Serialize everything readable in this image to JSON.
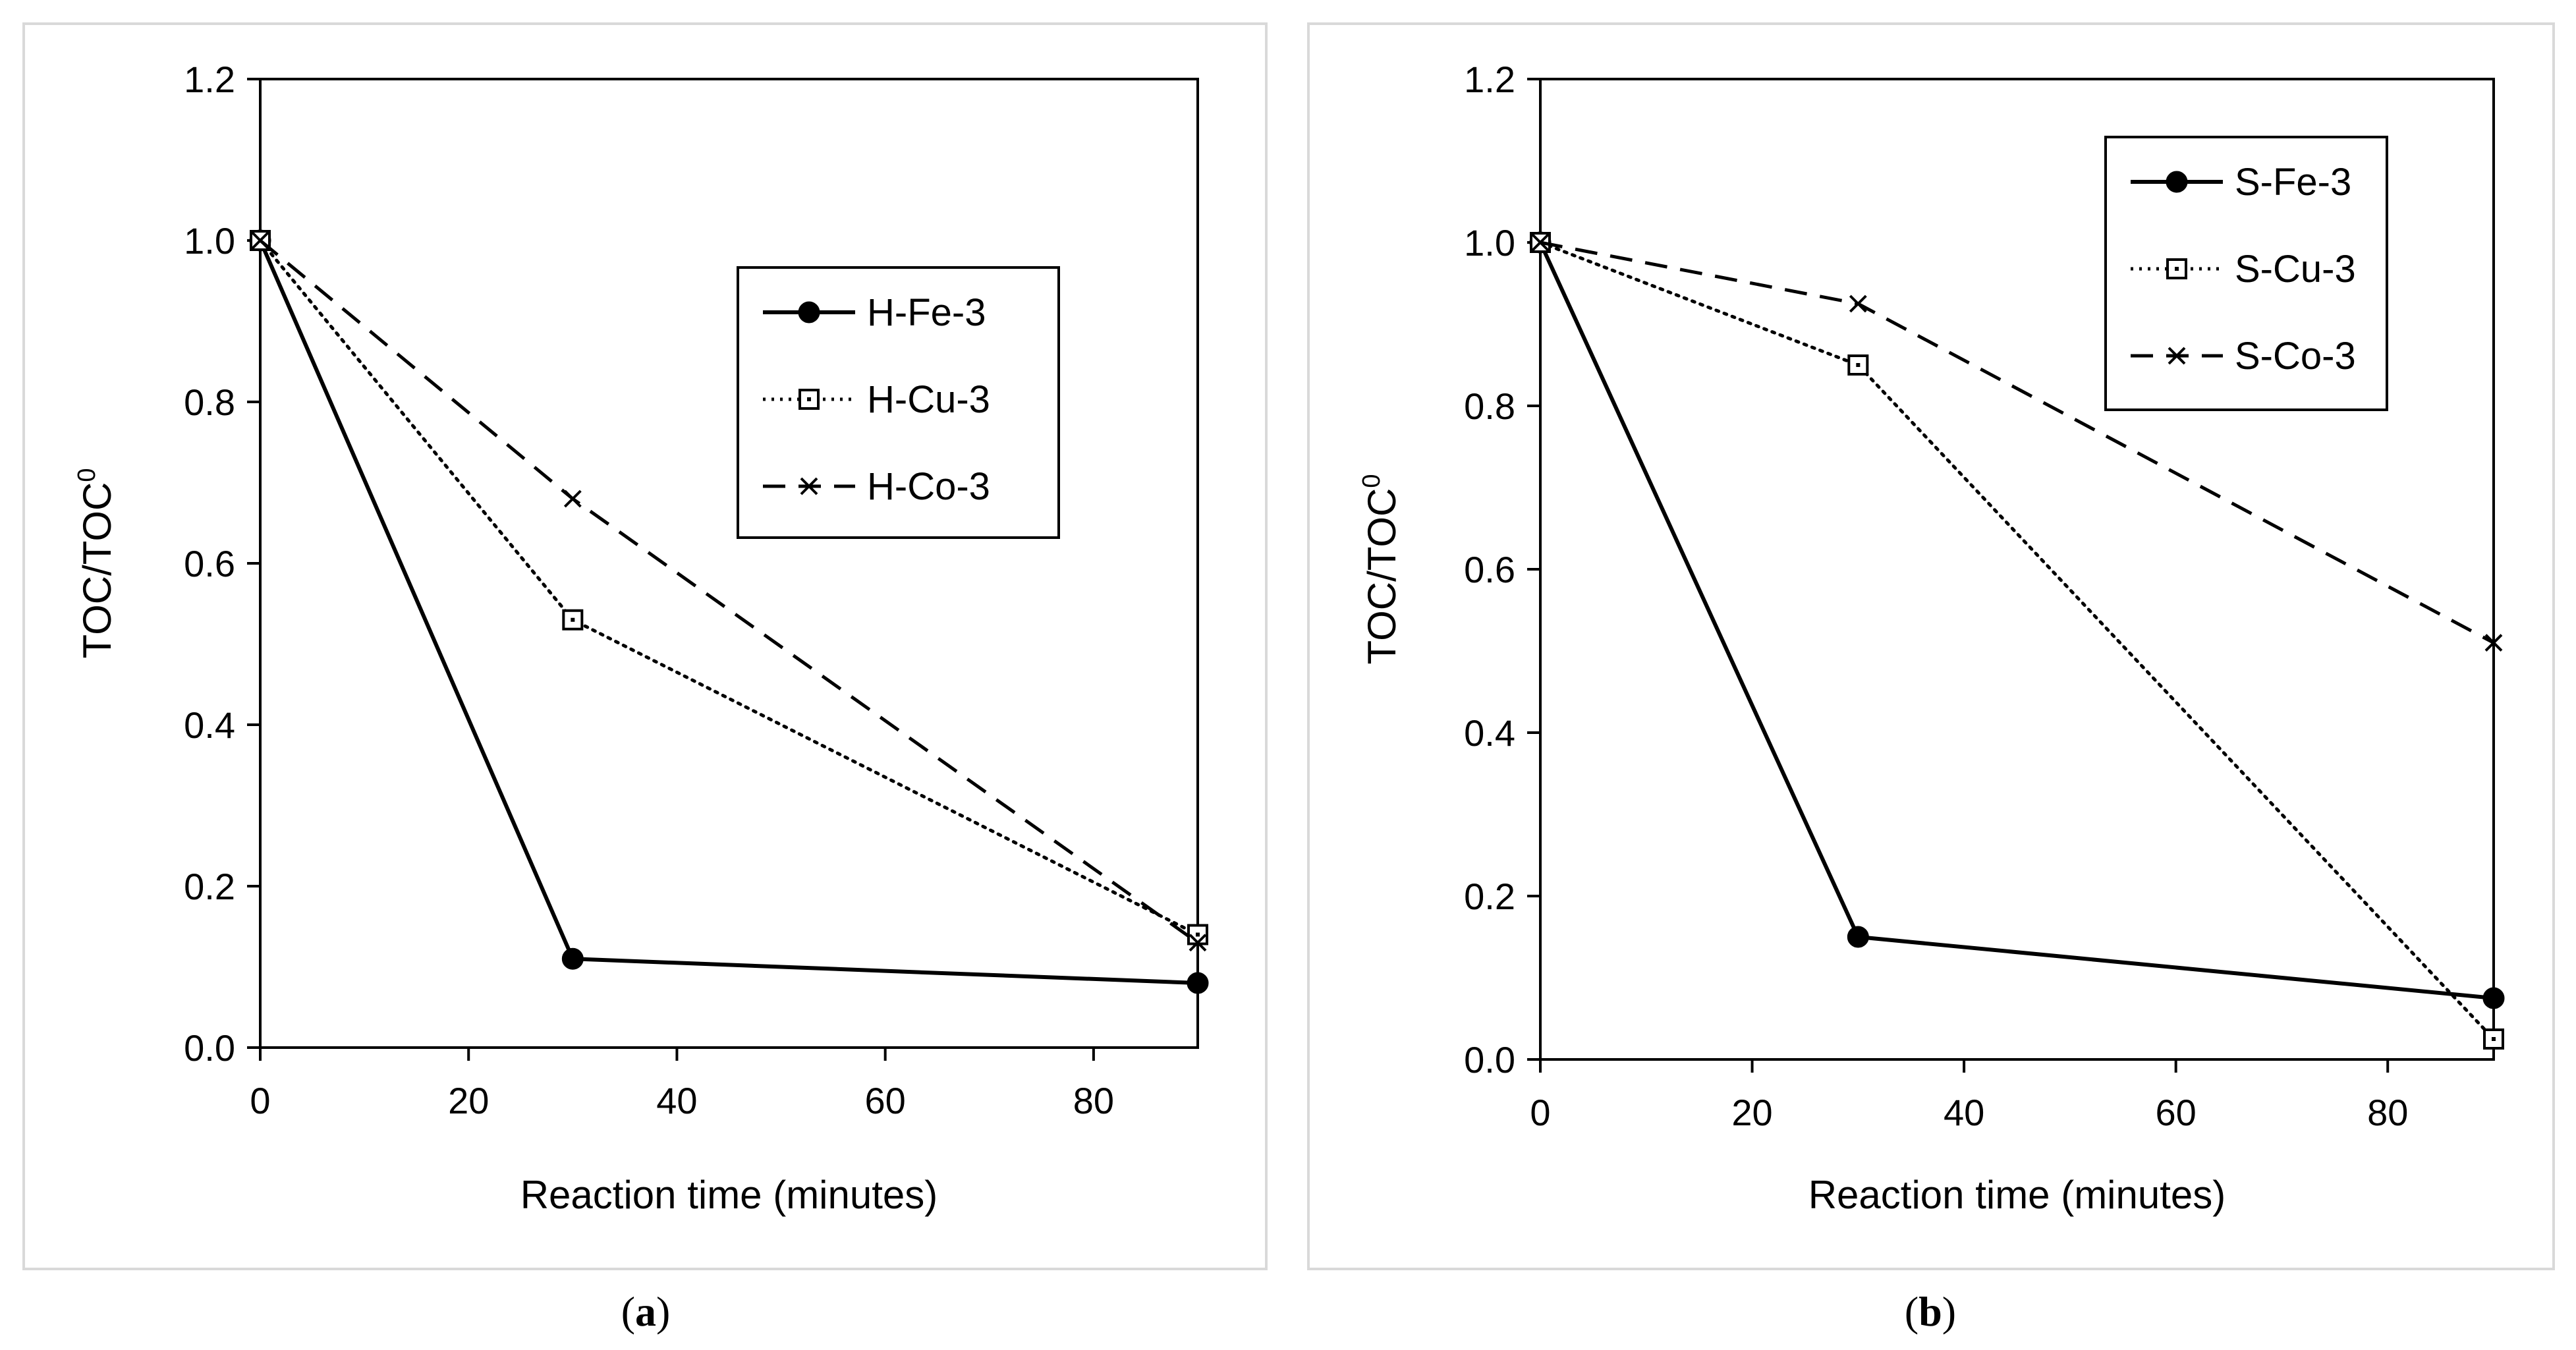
{
  "chart_data": [
    {
      "type": "line",
      "id": "a",
      "caption": {
        "open": "(",
        "letter": "a",
        "close": ")"
      },
      "title": "",
      "xlabel": "Reaction time (minutes)",
      "ylabel": {
        "base": "TOC/TOC",
        "sup": "0"
      },
      "xlim": [
        0,
        90
      ],
      "ylim": [
        0,
        1.2
      ],
      "xticks": [
        0,
        20,
        40,
        60,
        80
      ],
      "xtick_labels": [
        "0",
        "20",
        "40",
        "60",
        "80"
      ],
      "yticks": [
        0,
        0.2,
        0.4,
        0.6,
        0.8,
        1.0,
        1.2
      ],
      "ytick_labels": [
        "0.0",
        "0.2",
        "0.4",
        "0.6",
        "0.8",
        "1.0",
        "1.2"
      ],
      "legend_position": "upper-right",
      "x": [
        0,
        30,
        90
      ],
      "series": [
        {
          "name": "H-Fe-3",
          "values": [
            1.0,
            0.11,
            0.08
          ],
          "line": "solid",
          "marker": "filled-circle"
        },
        {
          "name": "H-Cu-3",
          "values": [
            1.0,
            0.53,
            0.14
          ],
          "line": "dotted",
          "marker": "open-square"
        },
        {
          "name": "H-Co-3",
          "values": [
            1.0,
            0.68,
            0.13
          ],
          "line": "dashed",
          "marker": "x"
        }
      ]
    },
    {
      "type": "line",
      "id": "b",
      "caption": {
        "open": "(",
        "letter": "b",
        "close": ")"
      },
      "title": "",
      "xlabel": "Reaction time (minutes)",
      "ylabel": {
        "base": "TOC/TOC",
        "sup": "0"
      },
      "xlim": [
        0,
        90
      ],
      "ylim": [
        0,
        1.2
      ],
      "xticks": [
        0,
        20,
        40,
        60,
        80
      ],
      "xtick_labels": [
        "0",
        "20",
        "40",
        "60",
        "80"
      ],
      "yticks": [
        0,
        0.2,
        0.4,
        0.6,
        0.8,
        1.0,
        1.2
      ],
      "ytick_labels": [
        "0.0",
        "0.2",
        "0.4",
        "0.6",
        "0.8",
        "1.0",
        "1.2"
      ],
      "legend_position": "top-right",
      "x": [
        0,
        30,
        90
      ],
      "series": [
        {
          "name": "S-Fe-3",
          "values": [
            1.0,
            0.15,
            0.075
          ],
          "line": "solid",
          "marker": "filled-circle"
        },
        {
          "name": "S-Cu-3",
          "values": [
            1.0,
            0.85,
            0.025
          ],
          "line": "dotted",
          "marker": "open-square"
        },
        {
          "name": "S-Co-3",
          "values": [
            1.0,
            0.925,
            0.51
          ],
          "line": "dashed",
          "marker": "x"
        }
      ]
    }
  ]
}
